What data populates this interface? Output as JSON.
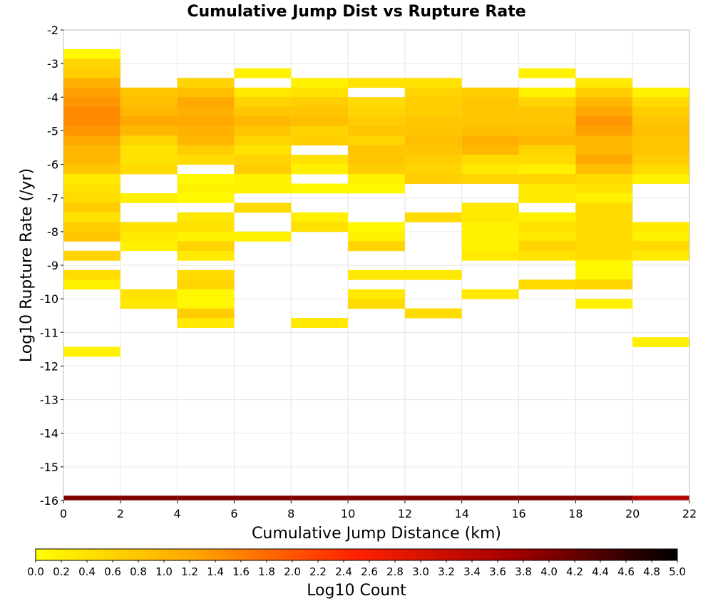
{
  "chart_data": {
    "type": "heatmap",
    "title": "Cumulative Jump Dist vs Rupture Rate",
    "xlabel": "Cumulative Jump Distance (km)",
    "ylabel": "Log10 Rupture Rate (/yr)",
    "colorbar_label": "Log10 Count",
    "xlim": [
      0,
      22
    ],
    "ylim": [
      -16,
      -2
    ],
    "x_ticks": [
      "0",
      "2",
      "4",
      "6",
      "8",
      "10",
      "12",
      "14",
      "16",
      "18",
      "20",
      "22"
    ],
    "y_ticks": [
      "-2",
      "-3",
      "-4",
      "-5",
      "-6",
      "-7",
      "-8",
      "-9",
      "-10",
      "-11",
      "-12",
      "-13",
      "-14",
      "-15",
      "-16"
    ],
    "colorbar_ticks": [
      "0.0",
      "0.2",
      "0.4",
      "0.6",
      "0.8",
      "1.0",
      "1.2",
      "1.4",
      "1.6",
      "1.8",
      "2.0",
      "2.2",
      "2.4",
      "2.6",
      "2.8",
      "3.0",
      "3.2",
      "3.4",
      "3.6",
      "3.8",
      "4.0",
      "4.2",
      "4.4",
      "4.6",
      "4.8",
      "5.0"
    ],
    "color_range": [
      0,
      5
    ],
    "x_bin_width": 2,
    "y_bin_height": 0.2857,
    "grid": true,
    "colormap": [
      "#ffff00",
      "#ffa500",
      "#ff2000",
      "#a00000",
      "#000000"
    ],
    "columns": [
      {
        "x_start": 0,
        "cells": [
          [
            -2.857,
            0.1
          ],
          [
            -3.143,
            0.6
          ],
          [
            -3.429,
            0.7
          ],
          [
            -3.714,
            1.1
          ],
          [
            -4.0,
            1.3
          ],
          [
            -4.286,
            1.4
          ],
          [
            -4.571,
            1.5
          ],
          [
            -4.857,
            1.5
          ],
          [
            -5.143,
            1.4
          ],
          [
            -5.429,
            1.2
          ],
          [
            -5.714,
            1.0
          ],
          [
            -6.0,
            1.0
          ],
          [
            -6.286,
            0.8
          ],
          [
            -6.571,
            0.3
          ],
          [
            -6.857,
            0.4
          ],
          [
            -7.143,
            0.5
          ],
          [
            -7.429,
            0.7
          ],
          [
            -7.714,
            0.4
          ],
          [
            -8.0,
            0.7
          ],
          [
            -8.286,
            0.8
          ],
          [
            -8.857,
            0.6
          ],
          [
            -9.429,
            0.5
          ],
          [
            -9.714,
            0.2
          ],
          [
            -11.714,
            0.2
          ]
        ]
      },
      {
        "x_start": 2,
        "cells": [
          [
            -4.0,
            0.8
          ],
          [
            -4.286,
            0.9
          ],
          [
            -4.571,
            1.0
          ],
          [
            -4.857,
            1.2
          ],
          [
            -5.143,
            1.0
          ],
          [
            -5.429,
            0.6
          ],
          [
            -5.714,
            0.4
          ],
          [
            -6.0,
            0.4
          ],
          [
            -6.286,
            0.5
          ],
          [
            -7.143,
            0.2
          ],
          [
            -8.0,
            0.4
          ],
          [
            -8.286,
            0.3
          ],
          [
            -8.571,
            0.2
          ],
          [
            -10.0,
            0.4
          ],
          [
            -10.286,
            0.3
          ]
        ]
      },
      {
        "x_start": 4,
        "cells": [
          [
            -3.714,
            0.6
          ],
          [
            -4.0,
            0.9
          ],
          [
            -4.286,
            1.2
          ],
          [
            -4.571,
            1.1
          ],
          [
            -4.857,
            1.2
          ],
          [
            -5.143,
            1.1
          ],
          [
            -5.429,
            1.0
          ],
          [
            -5.714,
            0.7
          ],
          [
            -6.0,
            0.5
          ],
          [
            -6.571,
            0.1
          ],
          [
            -6.857,
            0.2
          ],
          [
            -7.143,
            0.1
          ],
          [
            -7.714,
            0.3
          ],
          [
            -8.0,
            0.4
          ],
          [
            -8.286,
            0.2
          ],
          [
            -8.571,
            0.6
          ],
          [
            -8.857,
            0.3
          ],
          [
            -9.429,
            0.5
          ],
          [
            -9.714,
            0.6
          ],
          [
            -10.0,
            0.1
          ],
          [
            -10.286,
            0.1
          ],
          [
            -10.571,
            0.7
          ],
          [
            -10.857,
            0.3
          ]
        ]
      },
      {
        "x_start": 6,
        "cells": [
          [
            -3.429,
            0.2
          ],
          [
            -4.0,
            0.3
          ],
          [
            -4.286,
            0.6
          ],
          [
            -4.571,
            0.8
          ],
          [
            -4.857,
            1.0
          ],
          [
            -5.143,
            0.8
          ],
          [
            -5.429,
            0.6
          ],
          [
            -5.714,
            0.4
          ],
          [
            -6.0,
            0.6
          ],
          [
            -6.286,
            0.7
          ],
          [
            -6.571,
            0.2
          ],
          [
            -6.857,
            0.2
          ],
          [
            -7.429,
            0.5
          ],
          [
            -8.286,
            0.2
          ]
        ]
      },
      {
        "x_start": 8,
        "cells": [
          [
            -3.714,
            0.2
          ],
          [
            -4.0,
            0.4
          ],
          [
            -4.286,
            0.7
          ],
          [
            -4.571,
            0.8
          ],
          [
            -4.857,
            0.9
          ],
          [
            -5.143,
            0.6
          ],
          [
            -5.429,
            0.7
          ],
          [
            -6.0,
            0.4
          ],
          [
            -6.286,
            0.2
          ],
          [
            -6.857,
            0.1
          ],
          [
            -7.714,
            0.2
          ],
          [
            -8.0,
            0.4
          ],
          [
            -10.857,
            0.3
          ]
        ]
      },
      {
        "x_start": 10,
        "cells": [
          [
            -3.714,
            0.4
          ],
          [
            -4.286,
            0.5
          ],
          [
            -4.571,
            0.6
          ],
          [
            -4.857,
            0.7
          ],
          [
            -5.143,
            0.8
          ],
          [
            -5.429,
            0.6
          ],
          [
            -5.714,
            0.8
          ],
          [
            -6.0,
            0.8
          ],
          [
            -6.286,
            0.7
          ],
          [
            -6.571,
            0.2
          ],
          [
            -6.857,
            0.1
          ],
          [
            -8.0,
            0.1
          ],
          [
            -8.286,
            0.2
          ],
          [
            -8.571,
            0.6
          ],
          [
            -9.429,
            0.3
          ],
          [
            -10.0,
            0.3
          ],
          [
            -10.286,
            0.5
          ]
        ]
      },
      {
        "x_start": 12,
        "cells": [
          [
            -3.714,
            0.4
          ],
          [
            -4.0,
            0.6
          ],
          [
            -4.286,
            0.7
          ],
          [
            -4.571,
            0.7
          ],
          [
            -4.857,
            0.8
          ],
          [
            -5.143,
            0.8
          ],
          [
            -5.429,
            0.9
          ],
          [
            -5.714,
            0.8
          ],
          [
            -6.0,
            0.7
          ],
          [
            -6.286,
            0.6
          ],
          [
            -6.571,
            0.7
          ],
          [
            -7.714,
            0.5
          ],
          [
            -9.429,
            0.3
          ],
          [
            -10.571,
            0.5
          ]
        ]
      },
      {
        "x_start": 14,
        "cells": [
          [
            -4.0,
            0.7
          ],
          [
            -4.286,
            0.8
          ],
          [
            -4.571,
            0.8
          ],
          [
            -4.857,
            0.8
          ],
          [
            -5.143,
            0.9
          ],
          [
            -5.429,
            1.1
          ],
          [
            -5.714,
            1.0
          ],
          [
            -6.0,
            0.5
          ],
          [
            -6.286,
            0.3
          ],
          [
            -6.571,
            0.6
          ],
          [
            -7.429,
            0.3
          ],
          [
            -7.714,
            0.3
          ],
          [
            -8.0,
            0.2
          ],
          [
            -8.286,
            0.2
          ],
          [
            -8.571,
            0.2
          ],
          [
            -8.857,
            0.3
          ],
          [
            -10.0,
            0.3
          ]
        ]
      },
      {
        "x_start": 16,
        "cells": [
          [
            -3.429,
            0.2
          ],
          [
            -4.0,
            0.2
          ],
          [
            -4.286,
            0.6
          ],
          [
            -4.571,
            0.8
          ],
          [
            -4.857,
            0.8
          ],
          [
            -5.143,
            0.9
          ],
          [
            -5.429,
            1.0
          ],
          [
            -5.714,
            0.6
          ],
          [
            -6.0,
            0.5
          ],
          [
            -6.286,
            0.2
          ],
          [
            -6.571,
            0.6
          ],
          [
            -6.857,
            0.3
          ],
          [
            -7.143,
            0.3
          ],
          [
            -7.714,
            0.2
          ],
          [
            -8.0,
            0.4
          ],
          [
            -8.286,
            0.3
          ],
          [
            -8.571,
            0.6
          ],
          [
            -8.857,
            0.4
          ],
          [
            -9.714,
            0.5
          ]
        ]
      },
      {
        "x_start": 18,
        "cells": [
          [
            -3.714,
            0.3
          ],
          [
            -4.0,
            0.7
          ],
          [
            -4.286,
            1.0
          ],
          [
            -4.571,
            1.2
          ],
          [
            -4.857,
            1.4
          ],
          [
            -5.143,
            1.3
          ],
          [
            -5.429,
            1.0
          ],
          [
            -5.714,
            1.0
          ],
          [
            -6.0,
            1.2
          ],
          [
            -6.286,
            0.9
          ],
          [
            -6.571,
            0.5
          ],
          [
            -6.857,
            0.4
          ],
          [
            -7.143,
            0.2
          ],
          [
            -7.429,
            0.5
          ],
          [
            -7.714,
            0.5
          ],
          [
            -8.0,
            0.5
          ],
          [
            -8.286,
            0.5
          ],
          [
            -8.571,
            0.5
          ],
          [
            -8.857,
            0.5
          ],
          [
            -9.143,
            0.1
          ],
          [
            -9.429,
            0.1
          ],
          [
            -9.714,
            0.6
          ],
          [
            -10.286,
            0.2
          ]
        ]
      },
      {
        "x_start": 20,
        "cells": [
          [
            -4.0,
            0.2
          ],
          [
            -4.286,
            0.5
          ],
          [
            -4.571,
            0.7
          ],
          [
            -4.857,
            0.8
          ],
          [
            -5.143,
            0.9
          ],
          [
            -5.429,
            0.8
          ],
          [
            -5.714,
            0.8
          ],
          [
            -6.0,
            0.7
          ],
          [
            -6.286,
            0.5
          ],
          [
            -6.571,
            0.2
          ],
          [
            -8.0,
            0.3
          ],
          [
            -8.286,
            0.2
          ],
          [
            -8.571,
            0.5
          ],
          [
            -8.857,
            0.3
          ],
          [
            -11.429,
            0.2
          ]
        ]
      }
    ],
    "bottom_row": {
      "y": -16.0,
      "height": 0.143,
      "values": [
        4.0,
        4.0,
        4.0,
        4.0,
        4.0,
        4.0,
        4.0,
        4.0,
        4.0,
        4.0,
        3.5
      ]
    }
  }
}
